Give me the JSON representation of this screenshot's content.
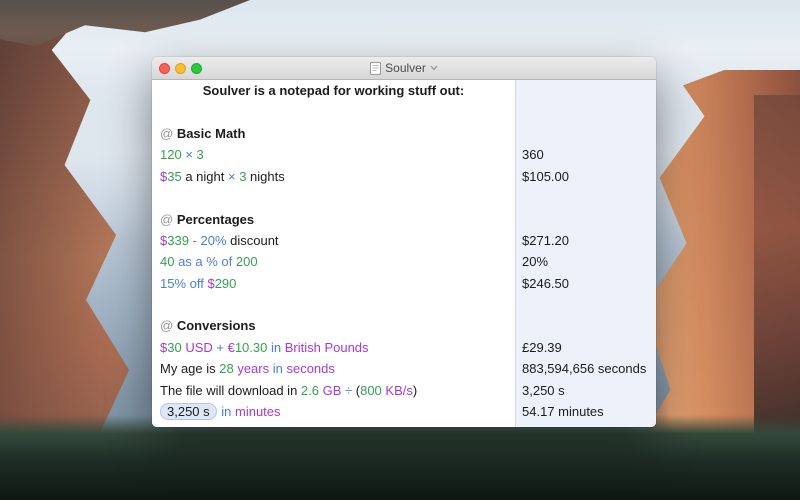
{
  "window": {
    "title": "Soulver"
  },
  "colors": {
    "green": "#33a152",
    "blue": "#4a80d2",
    "purple": "#a53ad2",
    "text": "#1c1c1e",
    "muted": "#98989d",
    "answers_bg": "#edf1f9",
    "pill_bg": "#dee6f7",
    "pill_border": "#b9c4e6"
  },
  "document": {
    "rows": [
      {
        "type": "title",
        "text": "Soulver is a notepad for working stuff out:",
        "result": ""
      },
      {
        "type": "blank",
        "result": ""
      },
      {
        "type": "section",
        "prefix": "@",
        "label": "Basic Math",
        "result": ""
      },
      {
        "type": "expr",
        "tokens": [
          {
            "t": "120 ",
            "c": "green"
          },
          {
            "t": "× ",
            "c": "blue"
          },
          {
            "t": "3",
            "c": "green"
          }
        ],
        "result": "360"
      },
      {
        "type": "expr",
        "tokens": [
          {
            "t": "$",
            "c": "purple"
          },
          {
            "t": "35",
            "c": "green"
          },
          {
            "t": " a night ",
            "c": "text"
          },
          {
            "t": "× ",
            "c": "blue"
          },
          {
            "t": "3",
            "c": "green"
          },
          {
            "t": " nights",
            "c": "text"
          }
        ],
        "result": "$105.00"
      },
      {
        "type": "blank",
        "result": ""
      },
      {
        "type": "section",
        "prefix": "@",
        "label": "Percentages",
        "result": ""
      },
      {
        "type": "expr",
        "tokens": [
          {
            "t": "$",
            "c": "purple"
          },
          {
            "t": "339",
            "c": "green"
          },
          {
            "t": " - 20%",
            "c": "blue"
          },
          {
            "t": " discount",
            "c": "text"
          }
        ],
        "result": "$271.20"
      },
      {
        "type": "expr",
        "tokens": [
          {
            "t": "40",
            "c": "green"
          },
          {
            "t": " as a % of ",
            "c": "blue"
          },
          {
            "t": "200",
            "c": "green"
          }
        ],
        "result": "20%"
      },
      {
        "type": "expr",
        "tokens": [
          {
            "t": "15% off ",
            "c": "blue"
          },
          {
            "t": "$",
            "c": "purple"
          },
          {
            "t": "290",
            "c": "green"
          }
        ],
        "result": "$246.50"
      },
      {
        "type": "blank",
        "result": ""
      },
      {
        "type": "section",
        "prefix": "@",
        "label": "Conversions",
        "result": ""
      },
      {
        "type": "expr",
        "tokens": [
          {
            "t": "$",
            "c": "purple"
          },
          {
            "t": "30",
            "c": "green"
          },
          {
            "t": " USD ",
            "c": "purple"
          },
          {
            "t": "+ ",
            "c": "blue"
          },
          {
            "t": "€",
            "c": "purple"
          },
          {
            "t": "10.30",
            "c": "green"
          },
          {
            "t": " in ",
            "c": "blue"
          },
          {
            "t": "British Pounds",
            "c": "purple"
          }
        ],
        "result": "£29.39"
      },
      {
        "type": "expr",
        "tokens": [
          {
            "t": "My age is ",
            "c": "text"
          },
          {
            "t": "28",
            "c": "green"
          },
          {
            "t": " years ",
            "c": "purple"
          },
          {
            "t": "in ",
            "c": "blue"
          },
          {
            "t": "seconds",
            "c": "purple"
          }
        ],
        "result": "883,594,656 seconds"
      },
      {
        "type": "expr",
        "tokens": [
          {
            "t": "The file will download in ",
            "c": "text"
          },
          {
            "t": "2.6",
            "c": "green"
          },
          {
            "t": " GB ",
            "c": "purple"
          },
          {
            "t": "÷ ",
            "c": "blue"
          },
          {
            "t": "(",
            "c": "text"
          },
          {
            "t": "800",
            "c": "green"
          },
          {
            "t": " KB/s",
            "c": "purple"
          },
          {
            "t": ")",
            "c": "text"
          }
        ],
        "result": "3,250 s"
      },
      {
        "type": "expr",
        "tokens": [
          {
            "t": "3,250 s",
            "c": "text",
            "pill": true
          },
          {
            "t": " in ",
            "c": "blue"
          },
          {
            "t": "minutes",
            "c": "purple"
          }
        ],
        "result": "54.17 minutes"
      }
    ]
  }
}
